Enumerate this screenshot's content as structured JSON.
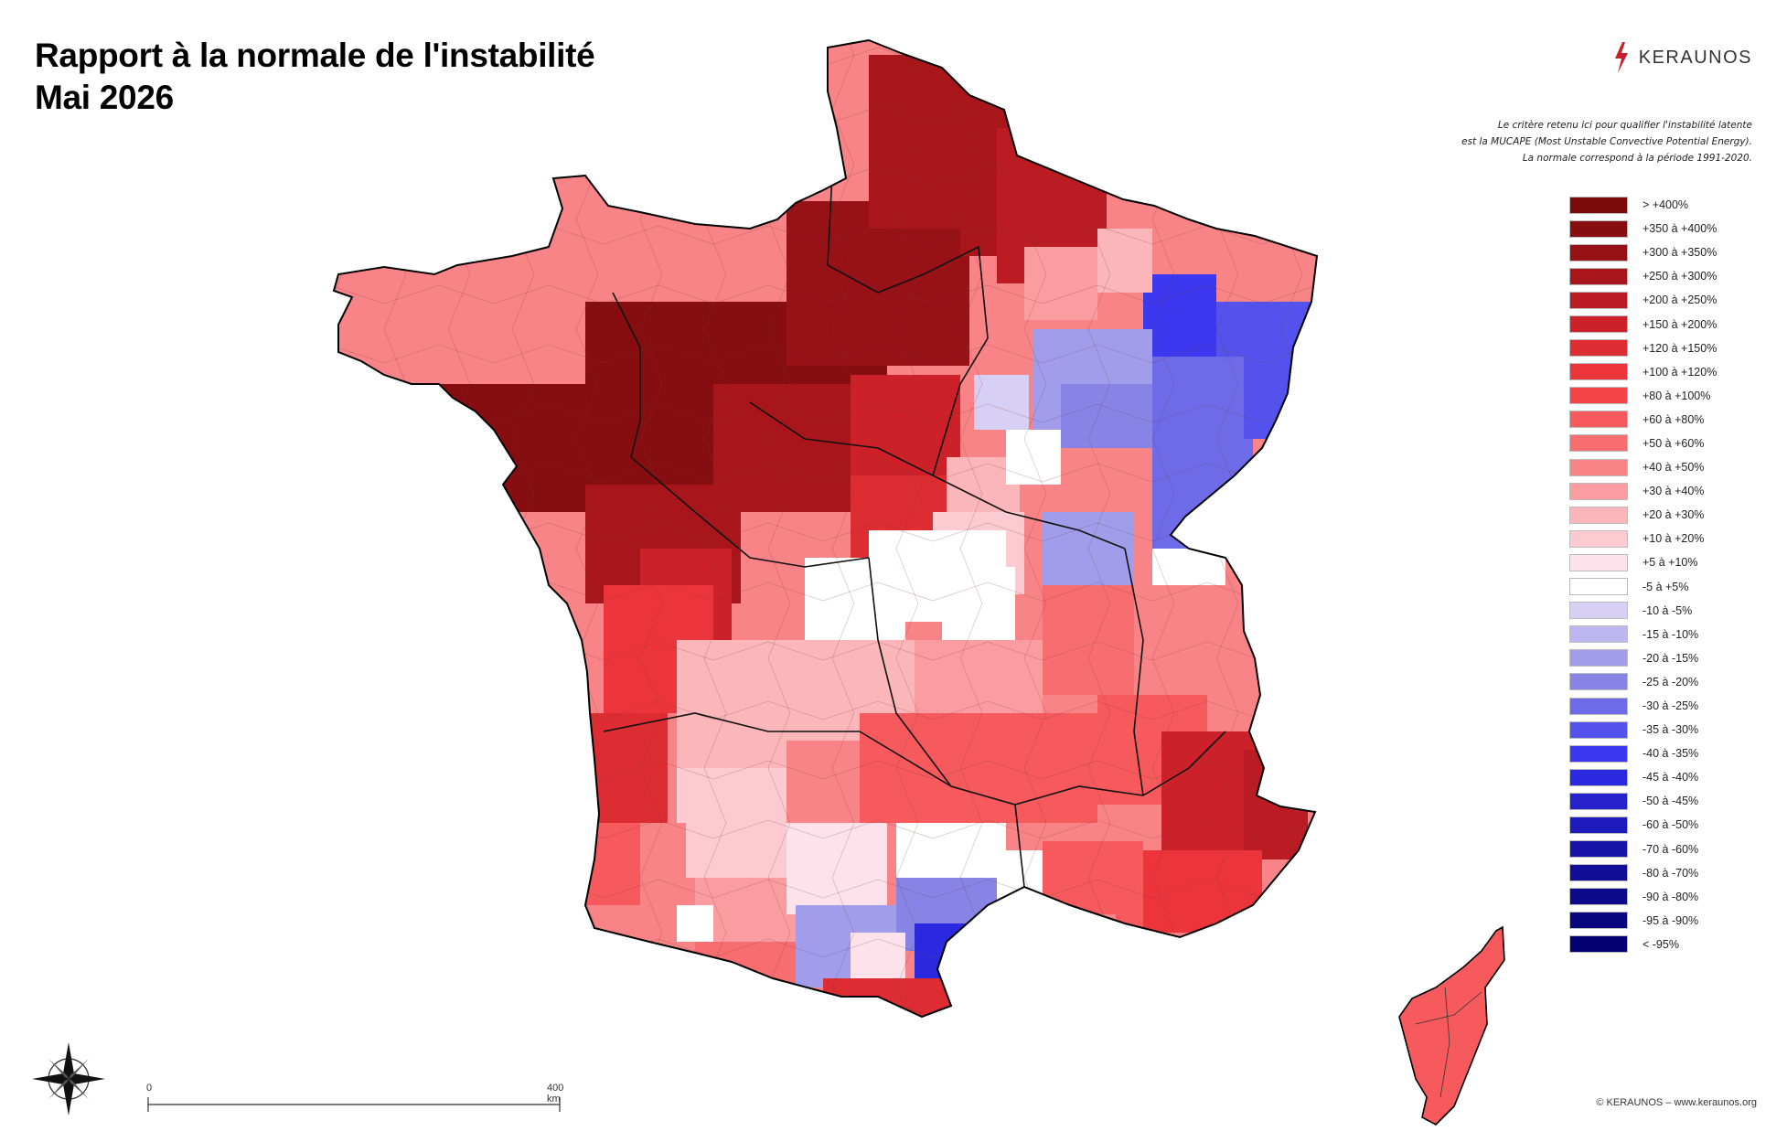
{
  "title": {
    "line1": "Rapport à la normale de l'instabilité",
    "line2": "Mai 2026"
  },
  "brand": {
    "name": "KERAUNOS",
    "icon": "lightning-bolt-icon",
    "color": "#c8202a"
  },
  "note": {
    "line1": "Le critère retenu ici pour qualifier l'instabilité latente",
    "line2": "est la MUCAPE (Most Unstable Convective Potential Energy).",
    "line3": "La normale correspond à la période 1991-2020."
  },
  "legend": [
    {
      "label": "> +400%",
      "color": "#7a0a0c"
    },
    {
      "label": "+350 à +400%",
      "color": "#860e11"
    },
    {
      "label": "+300 à +350%",
      "color": "#961217"
    },
    {
      "label": "+250 à +300%",
      "color": "#a8161c"
    },
    {
      "label": "+200 à +250%",
      "color": "#bb1b22"
    },
    {
      "label": "+150 à +200%",
      "color": "#cc2128"
    },
    {
      "label": "+120 à +150%",
      "color": "#dd2c32"
    },
    {
      "label": "+100 à +120%",
      "color": "#ec353a"
    },
    {
      "label": "+80 à +100%",
      "color": "#f44447"
    },
    {
      "label": "+60 à +80%",
      "color": "#f65a5d"
    },
    {
      "label": "+50 à +60%",
      "color": "#f86e70"
    },
    {
      "label": "+40 à +50%",
      "color": "#f98487"
    },
    {
      "label": "+30 à +40%",
      "color": "#fa9da0"
    },
    {
      "label": "+20 à +30%",
      "color": "#fbb6ba"
    },
    {
      "label": "+10 à +20%",
      "color": "#fccbd2"
    },
    {
      "label": "+5 à +10%",
      "color": "#fde2ec"
    },
    {
      "label": "-5 à +5%",
      "color": "#ffffff"
    },
    {
      "label": "-10 à -5%",
      "color": "#d8d0f4"
    },
    {
      "label": "-15 à -10%",
      "color": "#bdb6f1"
    },
    {
      "label": "-20 à -15%",
      "color": "#a29deb"
    },
    {
      "label": "-25 à -20%",
      "color": "#8784e6"
    },
    {
      "label": "-30 à -25%",
      "color": "#6e6be8"
    },
    {
      "label": "-35 à -30%",
      "color": "#5452ec"
    },
    {
      "label": "-40 à -35%",
      "color": "#3b38ef"
    },
    {
      "label": "-45 à -40%",
      "color": "#2b29e0"
    },
    {
      "label": "-50 à -45%",
      "color": "#2421cd"
    },
    {
      "label": "-60 à -50%",
      "color": "#1d1bbb"
    },
    {
      "label": "-70 à -60%",
      "color": "#1715a8"
    },
    {
      "label": "-80 à -70%",
      "color": "#110f98"
    },
    {
      "label": "-90 à -80%",
      "color": "#0c0a8a"
    },
    {
      "label": "-95 à -90%",
      "color": "#08067e"
    },
    {
      "label": "< -95%",
      "color": "#040272"
    }
  ],
  "scale": {
    "start_label": "0",
    "end_label": "400 km"
  },
  "compass": {
    "icon": "compass-rose-icon"
  },
  "copyright": "© KERAUNOS – www.keraunos.org"
}
